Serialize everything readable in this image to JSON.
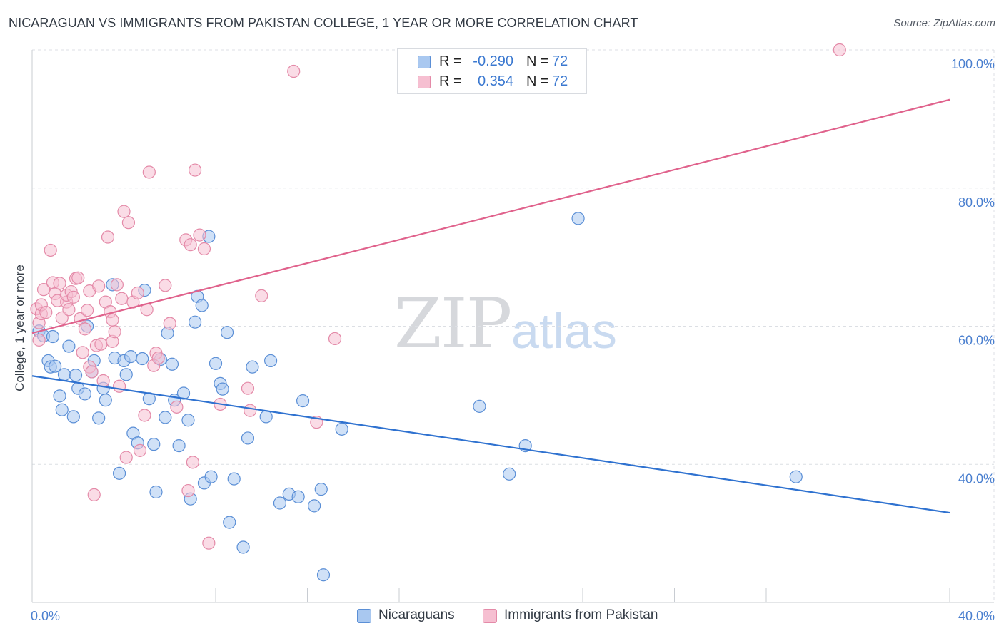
{
  "title": "NICARAGUAN VS IMMIGRANTS FROM PAKISTAN COLLEGE, 1 YEAR OR MORE CORRELATION CHART",
  "source": "Source: ZipAtlas.com",
  "watermark": {
    "zip": "ZIP",
    "atlas": "atlas"
  },
  "colors": {
    "blue_fill": "#a9c8f0",
    "blue_stroke": "#5b8fd6",
    "blue_line": "#2f72d0",
    "pink_fill": "#f6bfd1",
    "pink_stroke": "#e48aa8",
    "pink_line": "#e0628c",
    "tick_label": "#4a7fcf",
    "grid": "#dcdfe4"
  },
  "legend": {
    "rows": [
      {
        "r_label": "R =",
        "r_value": "-0.290",
        "n_label": "N =",
        "n_value": "72"
      },
      {
        "r_label": "R =",
        "r_value": "0.354",
        "n_label": "N =",
        "n_value": "72"
      }
    ]
  },
  "bottom_legend": {
    "series_a": "Nicaraguans",
    "series_b": "Immigrants from Pakistan"
  },
  "chart_data": {
    "type": "scatter",
    "title": "NICARAGUAN VS IMMIGRANTS FROM PAKISTAN COLLEGE, 1 YEAR OR MORE CORRELATION CHART",
    "xlabel": "",
    "ylabel": "College, 1 year or more",
    "xlim": [
      0,
      40
    ],
    "ylim": [
      20,
      100
    ],
    "x_tick_labels": [
      "0.0%",
      "40.0%"
    ],
    "y_ticks": [
      40,
      60,
      80,
      100
    ],
    "y_tick_labels": [
      "40.0%",
      "60.0%",
      "80.0%",
      "100.0%"
    ],
    "grid": true,
    "legend_placement": "top-center",
    "series": [
      {
        "name": "Nicaraguans",
        "color": "#a9c8f0",
        "trend": {
          "x": [
            0,
            40
          ],
          "y": [
            52.8,
            33
          ]
        },
        "points": [
          [
            0.3,
            59.3
          ],
          [
            0.5,
            58.6
          ],
          [
            0.7,
            55.0
          ],
          [
            0.8,
            54.1
          ],
          [
            1.0,
            54.2
          ],
          [
            0.9,
            58.5
          ],
          [
            1.2,
            49.9
          ],
          [
            1.3,
            47.9
          ],
          [
            1.4,
            53.0
          ],
          [
            1.6,
            57.1
          ],
          [
            1.8,
            46.9
          ],
          [
            1.9,
            52.9
          ],
          [
            2.0,
            51.0
          ],
          [
            2.3,
            50.2
          ],
          [
            2.4,
            60.0
          ],
          [
            2.6,
            53.4
          ],
          [
            2.7,
            55.0
          ],
          [
            2.9,
            46.7
          ],
          [
            3.1,
            51.0
          ],
          [
            3.2,
            49.3
          ],
          [
            3.5,
            66.0
          ],
          [
            3.6,
            55.4
          ],
          [
            3.8,
            38.7
          ],
          [
            4.0,
            55.0
          ],
          [
            4.1,
            53.0
          ],
          [
            4.3,
            55.6
          ],
          [
            4.4,
            44.5
          ],
          [
            4.6,
            43.1
          ],
          [
            4.8,
            55.3
          ],
          [
            4.9,
            65.2
          ],
          [
            5.1,
            49.5
          ],
          [
            5.3,
            42.9
          ],
          [
            5.4,
            36.0
          ],
          [
            5.6,
            55.2
          ],
          [
            5.8,
            46.8
          ],
          [
            5.9,
            59.0
          ],
          [
            6.1,
            54.5
          ],
          [
            6.2,
            49.3
          ],
          [
            6.4,
            42.7
          ],
          [
            6.6,
            50.3
          ],
          [
            6.8,
            46.4
          ],
          [
            6.9,
            35.0
          ],
          [
            7.1,
            60.6
          ],
          [
            7.2,
            64.3
          ],
          [
            7.4,
            63.0
          ],
          [
            7.5,
            37.3
          ],
          [
            7.7,
            73.0
          ],
          [
            7.8,
            38.2
          ],
          [
            8.0,
            54.6
          ],
          [
            8.2,
            51.7
          ],
          [
            8.3,
            50.9
          ],
          [
            8.5,
            59.1
          ],
          [
            8.6,
            31.6
          ],
          [
            8.8,
            37.9
          ],
          [
            9.2,
            28.0
          ],
          [
            9.4,
            43.8
          ],
          [
            9.6,
            54.1
          ],
          [
            10.2,
            46.9
          ],
          [
            10.4,
            55.0
          ],
          [
            10.8,
            34.4
          ],
          [
            11.2,
            35.7
          ],
          [
            11.6,
            35.3
          ],
          [
            11.8,
            49.2
          ],
          [
            12.3,
            34.0
          ],
          [
            12.6,
            36.4
          ],
          [
            12.7,
            24.0
          ],
          [
            13.5,
            45.1
          ],
          [
            19.5,
            48.4
          ],
          [
            20.8,
            38.6
          ],
          [
            21.5,
            42.7
          ],
          [
            23.8,
            75.6
          ],
          [
            33.3,
            38.2
          ]
        ]
      },
      {
        "name": "Immigrants from Pakistan",
        "color": "#f6bfd1",
        "trend": {
          "x": [
            0,
            40
          ],
          "y": [
            59,
            92.8
          ]
        },
        "points": [
          [
            0.2,
            62.5
          ],
          [
            0.3,
            58.0
          ],
          [
            0.3,
            60.5
          ],
          [
            0.4,
            61.8
          ],
          [
            0.4,
            63.1
          ],
          [
            0.5,
            65.3
          ],
          [
            0.6,
            62.0
          ],
          [
            0.8,
            71.0
          ],
          [
            0.9,
            66.3
          ],
          [
            1.0,
            64.7
          ],
          [
            1.1,
            63.7
          ],
          [
            1.2,
            66.2
          ],
          [
            1.3,
            61.2
          ],
          [
            1.5,
            63.5
          ],
          [
            1.5,
            64.5
          ],
          [
            1.6,
            62.4
          ],
          [
            1.7,
            65.0
          ],
          [
            1.8,
            64.2
          ],
          [
            1.9,
            66.9
          ],
          [
            2.0,
            67.0
          ],
          [
            2.1,
            61.1
          ],
          [
            2.2,
            56.2
          ],
          [
            2.3,
            59.6
          ],
          [
            2.4,
            62.3
          ],
          [
            2.5,
            65.1
          ],
          [
            2.5,
            54.1
          ],
          [
            2.6,
            53.4
          ],
          [
            2.7,
            35.6
          ],
          [
            2.8,
            57.2
          ],
          [
            2.9,
            65.8
          ],
          [
            3.0,
            57.4
          ],
          [
            3.1,
            52.1
          ],
          [
            3.2,
            63.5
          ],
          [
            3.3,
            72.9
          ],
          [
            3.4,
            62.1
          ],
          [
            3.5,
            60.9
          ],
          [
            3.5,
            57.8
          ],
          [
            3.6,
            59.2
          ],
          [
            3.7,
            66.0
          ],
          [
            3.8,
            51.3
          ],
          [
            3.9,
            64.0
          ],
          [
            4.0,
            76.6
          ],
          [
            4.1,
            41.0
          ],
          [
            4.2,
            75.0
          ],
          [
            4.4,
            63.5
          ],
          [
            4.6,
            64.8
          ],
          [
            4.7,
            42.0
          ],
          [
            4.9,
            47.1
          ],
          [
            5.0,
            62.4
          ],
          [
            5.1,
            82.3
          ],
          [
            5.3,
            54.3
          ],
          [
            5.4,
            56.1
          ],
          [
            5.5,
            55.4
          ],
          [
            5.8,
            65.9
          ],
          [
            6.0,
            60.4
          ],
          [
            6.3,
            48.3
          ],
          [
            6.7,
            72.5
          ],
          [
            6.8,
            36.2
          ],
          [
            6.9,
            71.8
          ],
          [
            7.0,
            40.3
          ],
          [
            7.1,
            82.6
          ],
          [
            7.3,
            73.2
          ],
          [
            7.5,
            71.2
          ],
          [
            7.7,
            28.6
          ],
          [
            8.2,
            48.7
          ],
          [
            9.4,
            51.0
          ],
          [
            9.5,
            47.8
          ],
          [
            10.0,
            64.4
          ],
          [
            11.4,
            96.9
          ],
          [
            12.4,
            46.1
          ],
          [
            13.2,
            58.2
          ],
          [
            35.2,
            100.0
          ]
        ]
      }
    ]
  }
}
